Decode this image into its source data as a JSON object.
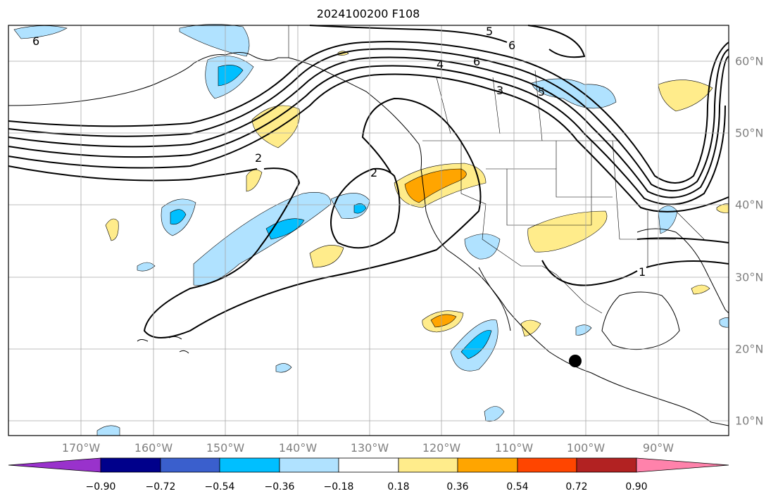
{
  "title": "2024100200 F108",
  "longitude_labels": [
    "170°W",
    "160°W",
    "150°W",
    "140°W",
    "130°W",
    "120°W",
    "110°W",
    "100°W",
    "90°W"
  ],
  "latitude_labels": [
    "60°N",
    "50°N",
    "40°N",
    "30°N",
    "20°N",
    "10°N"
  ],
  "contour_labels": [
    "6",
    "5",
    "6",
    "4",
    "6",
    "3",
    "5",
    "2",
    "2",
    "1"
  ],
  "colorbar": {
    "ticks": [
      "−0.90",
      "−0.72",
      "−0.54",
      "−0.36",
      "−0.18",
      "0.18",
      "0.36",
      "0.54",
      "0.72",
      "0.90"
    ],
    "colors": [
      "#9932cc",
      "#00008b",
      "#3a5fcd",
      "#00bfff",
      "#b0e2ff",
      "#ffffff",
      "#ffec8b",
      "#ffa500",
      "#ff4500",
      "#b22222",
      "#ff82ab"
    ]
  },
  "marker": "storm-center-dot"
}
